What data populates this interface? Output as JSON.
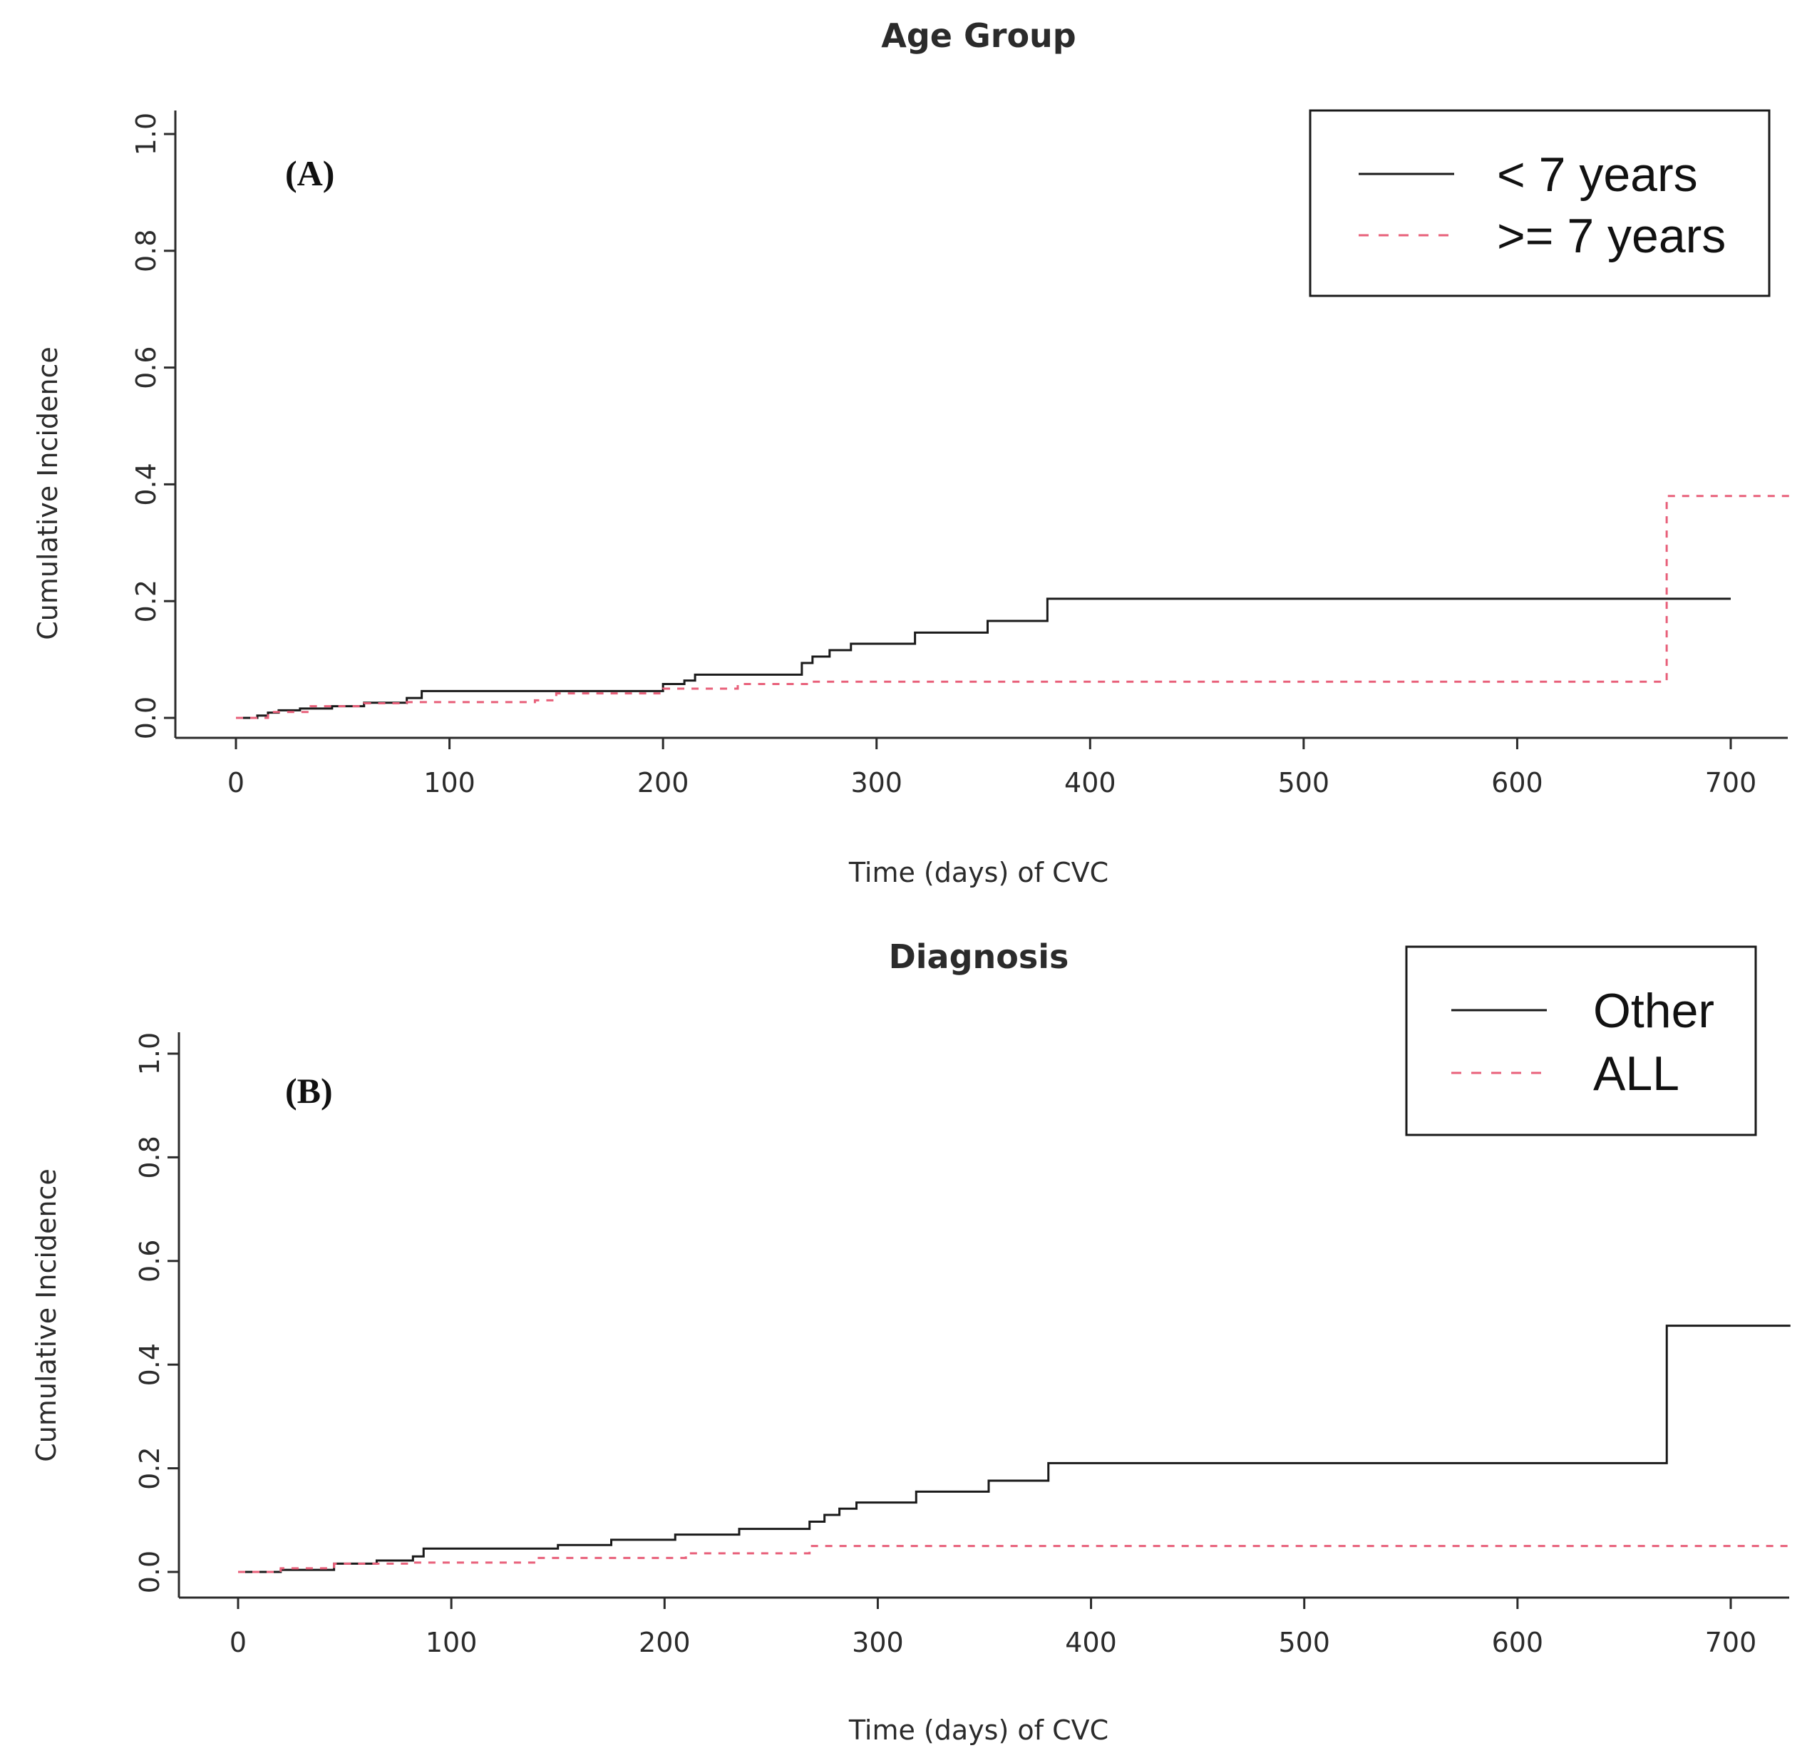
{
  "colors": {
    "black": "#1a1a1a",
    "red": "#e8607a",
    "axis": "#2b2b2b"
  },
  "chart_data": [
    {
      "type": "line",
      "subtype": "step",
      "title": "Age Group",
      "panel_label_open": "(",
      "panel_label_letter": "A",
      "panel_label_close": ")",
      "xlabel": "Time (days) of CVC",
      "ylabel": "Cumulative Incidence",
      "xlim": [
        -28,
        728
      ],
      "ylim": [
        -0.04,
        1.04
      ],
      "xticks": [
        0,
        100,
        200,
        300,
        400,
        500,
        600,
        700
      ],
      "xtick_labels": [
        "0",
        "100",
        "200",
        "300",
        "400",
        "500",
        "600",
        "700"
      ],
      "yticks": [
        0.0,
        0.2,
        0.4,
        0.6,
        0.8,
        1.0
      ],
      "ytick_labels": [
        "0.0",
        "0.2",
        "0.4",
        "0.6",
        "0.8",
        "1.0"
      ],
      "legend_position": "top-right",
      "series": [
        {
          "name": "< 7 years",
          "style": "solid",
          "color": "#1a1a1a",
          "x": [
            0,
            10,
            15,
            20,
            30,
            45,
            60,
            80,
            87,
            200,
            210,
            215,
            265,
            270,
            278,
            288,
            318,
            352,
            380,
            700
          ],
          "y": [
            0,
            0.004,
            0.009,
            0.013,
            0.016,
            0.02,
            0.026,
            0.034,
            0.046,
            0.058,
            0.064,
            0.074,
            0.094,
            0.105,
            0.116,
            0.127,
            0.146,
            0.166,
            0.204,
            0.204
          ]
        },
        {
          "name": ">= 7 years",
          "style": "dashed",
          "color": "#e8607a",
          "x": [
            0,
            15,
            35,
            60,
            80,
            140,
            150,
            200,
            235,
            270,
            670,
            728
          ],
          "y": [
            0,
            0.01,
            0.02,
            0.025,
            0.027,
            0.03,
            0.042,
            0.05,
            0.058,
            0.062,
            0.38,
            0.38
          ]
        }
      ]
    },
    {
      "type": "line",
      "subtype": "step",
      "title": "Diagnosis",
      "panel_label_open": "(",
      "panel_label_letter": "B",
      "panel_label_close": ")",
      "xlabel": "Time (days) of CVC",
      "ylabel": "Cumulative Incidence",
      "xlim": [
        -28,
        728
      ],
      "ylim": [
        -0.04,
        1.04
      ],
      "xticks": [
        0,
        100,
        200,
        300,
        400,
        500,
        600,
        700
      ],
      "xtick_labels": [
        "0",
        "100",
        "200",
        "300",
        "400",
        "500",
        "600",
        "700"
      ],
      "yticks": [
        0.0,
        0.2,
        0.4,
        0.6,
        0.8,
        1.0
      ],
      "ytick_labels": [
        "0.0",
        "0.2",
        "0.4",
        "0.6",
        "0.8",
        "1.0"
      ],
      "legend_position": "top-right",
      "series": [
        {
          "name": "Other",
          "style": "solid",
          "color": "#1a1a1a",
          "x": [
            0,
            20,
            45,
            65,
            82,
            87,
            150,
            175,
            205,
            235,
            268,
            275,
            282,
            290,
            318,
            352,
            380,
            670,
            728
          ],
          "y": [
            0,
            0.004,
            0.016,
            0.022,
            0.03,
            0.045,
            0.052,
            0.062,
            0.072,
            0.083,
            0.097,
            0.11,
            0.122,
            0.134,
            0.155,
            0.176,
            0.21,
            0.475,
            0.475
          ]
        },
        {
          "name": "ALL",
          "style": "dashed",
          "color": "#e8607a",
          "x": [
            0,
            20,
            45,
            82,
            140,
            210,
            268,
            728
          ],
          "y": [
            0,
            0.007,
            0.016,
            0.018,
            0.027,
            0.036,
            0.05,
            0.05
          ]
        }
      ]
    }
  ]
}
